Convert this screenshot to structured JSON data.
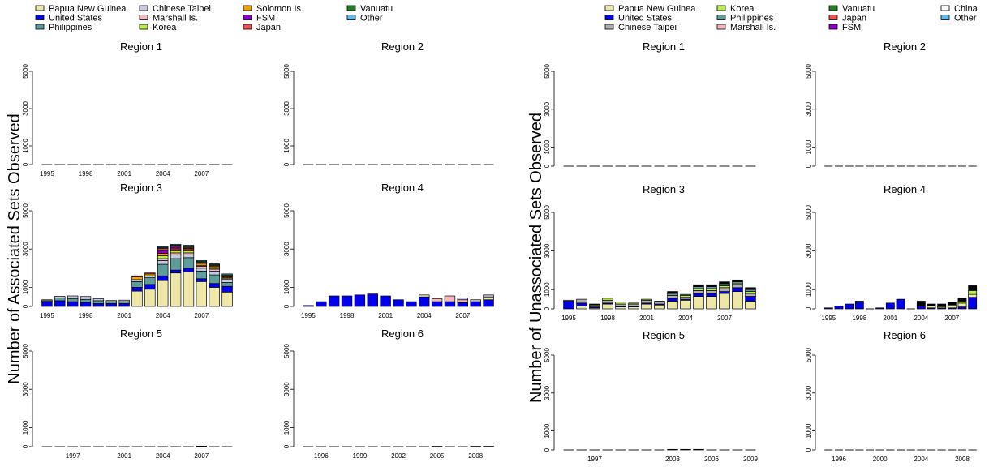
{
  "figure": {
    "left_ylabel": "Number of Associated Sets Observed",
    "right_ylabel": "Number of Unassociated Sets Observed"
  },
  "legends": {
    "left": [
      {
        "name": "Papua New Guinea",
        "color": "#eee8a8"
      },
      {
        "name": "United States",
        "color": "#0000ee"
      },
      {
        "name": "Philippines",
        "color": "#5e9e9a"
      },
      {
        "name": "Chinese Taipei",
        "color": "#c8c8e0"
      },
      {
        "name": "Marshall Is.",
        "color": "#f4b8c0"
      },
      {
        "name": "Korea",
        "color": "#b8f048"
      },
      {
        "name": "Solomon Is.",
        "color": "#f0a000"
      },
      {
        "name": "FSM",
        "color": "#8a00c8"
      },
      {
        "name": "Japan",
        "color": "#f05050"
      },
      {
        "name": "Vanuatu",
        "color": "#208020"
      },
      {
        "name": "Other",
        "color": "#60b8f0"
      }
    ],
    "right": [
      {
        "name": "Papua New Guinea",
        "color": "#eee8a8"
      },
      {
        "name": "United States",
        "color": "#0000ee"
      },
      {
        "name": "Chinese Taipei",
        "color": "#b0b0b0"
      },
      {
        "name": "Korea",
        "color": "#b8f048"
      },
      {
        "name": "Philippines",
        "color": "#5e9e9a"
      },
      {
        "name": "Marshall Is.",
        "color": "#f4b8c0"
      },
      {
        "name": "Vanuatu",
        "color": "#208020"
      },
      {
        "name": "Japan",
        "color": "#f05050"
      },
      {
        "name": "FSM",
        "color": "#8a00c8"
      },
      {
        "name": "China",
        "color": "#ffffff"
      },
      {
        "name": "Other",
        "color": "#60b8f0"
      }
    ]
  },
  "chart_data": [
    {
      "type": "bar",
      "stacked": true,
      "group": "Associated",
      "title": "Region 1",
      "categories": [
        "1995",
        "1996",
        "1997",
        "1998",
        "1999",
        "2000",
        "2001",
        "2002",
        "2003",
        "2004",
        "2005",
        "2006",
        "2007",
        "2008",
        "2009"
      ],
      "ylim": [
        0,
        5000
      ],
      "yticks": [
        0,
        1000,
        3000,
        5000
      ],
      "xtick_labels": [
        "1995",
        "1998",
        "2001",
        "2004",
        "2007"
      ],
      "series": []
    },
    {
      "type": "bar",
      "stacked": true,
      "group": "Associated",
      "title": "Region 2",
      "categories": [
        "1995",
        "1996",
        "1997",
        "1998",
        "1999",
        "2000",
        "2001",
        "2002",
        "2003",
        "2004",
        "2005",
        "2006",
        "2007",
        "2008",
        "2009"
      ],
      "ylim": [
        0,
        5000
      ],
      "yticks": [
        0,
        1000,
        3000,
        5000
      ],
      "xtick_labels": [],
      "series": []
    },
    {
      "type": "bar",
      "stacked": true,
      "group": "Associated",
      "title": "Region 3",
      "categories": [
        "1995",
        "1996",
        "1997",
        "1998",
        "1999",
        "2000",
        "2001",
        "2002",
        "2003",
        "2004",
        "2005",
        "2006",
        "2007",
        "2008",
        "2009"
      ],
      "ylim": [
        0,
        5000
      ],
      "yticks": [
        0,
        1000,
        3000,
        5000
      ],
      "xtick_labels": [
        "1995",
        "1998",
        "2001",
        "2004",
        "2007"
      ],
      "series": [
        {
          "name": "Papua New Guinea",
          "color": "#eee8a8",
          "values": [
            0,
            0,
            0,
            0,
            0,
            0,
            0,
            800,
            900,
            1350,
            1750,
            1800,
            1300,
            1000,
            750
          ]
        },
        {
          "name": "United States",
          "color": "#0000ee",
          "values": [
            250,
            300,
            250,
            220,
            150,
            150,
            150,
            200,
            250,
            250,
            150,
            200,
            150,
            200,
            300
          ]
        },
        {
          "name": "Philippines",
          "color": "#5e9e9a",
          "values": [
            50,
            150,
            150,
            150,
            150,
            100,
            100,
            300,
            350,
            600,
            600,
            550,
            400,
            450,
            200
          ]
        },
        {
          "name": "Chinese Taipei",
          "color": "#c8c8e0",
          "values": [
            50,
            80,
            150,
            150,
            100,
            60,
            80,
            100,
            100,
            200,
            200,
            150,
            150,
            200,
            150
          ]
        },
        {
          "name": "Marshall Is.",
          "color": "#f4b8c0",
          "values": [
            0,
            0,
            0,
            0,
            0,
            0,
            0,
            0,
            0,
            100,
            100,
            100,
            100,
            100,
            50
          ]
        },
        {
          "name": "Korea",
          "color": "#b8f048",
          "values": [
            0,
            0,
            0,
            0,
            0,
            0,
            0,
            0,
            0,
            150,
            100,
            100,
            50,
            50,
            50
          ]
        },
        {
          "name": "Solomon Is.",
          "color": "#f0a000",
          "values": [
            0,
            0,
            0,
            0,
            0,
            0,
            0,
            150,
            100,
            120,
            100,
            100,
            100,
            80,
            50
          ]
        },
        {
          "name": "FSM",
          "color": "#8a00c8",
          "values": [
            0,
            0,
            0,
            0,
            0,
            0,
            0,
            0,
            0,
            150,
            100,
            50,
            0,
            0,
            0
          ]
        },
        {
          "name": "Japan",
          "color": "#f05050",
          "values": [
            0,
            0,
            0,
            0,
            0,
            0,
            0,
            50,
            50,
            100,
            50,
            50,
            50,
            50,
            50
          ]
        },
        {
          "name": "Vanuatu",
          "color": "#208020",
          "values": [
            0,
            0,
            0,
            0,
            0,
            0,
            0,
            0,
            0,
            50,
            50,
            50,
            50,
            50,
            50
          ]
        },
        {
          "name": "Other",
          "color": "#60b8f0",
          "values": [
            0,
            0,
            0,
            0,
            0,
            0,
            0,
            0,
            0,
            50,
            50,
            50,
            50,
            50,
            50
          ]
        },
        {
          "name": "China",
          "color": "#ffffff",
          "values": [
            0,
            0,
            0,
            0,
            0,
            0,
            0,
            0,
            0,
            0,
            0,
            0,
            0,
            0,
            0
          ]
        }
      ]
    },
    {
      "type": "bar",
      "stacked": true,
      "group": "Associated",
      "title": "Region 4",
      "categories": [
        "1995",
        "1996",
        "1997",
        "1998",
        "1999",
        "2000",
        "2001",
        "2002",
        "2003",
        "2004",
        "2005",
        "2006",
        "2007",
        "2008",
        "2009"
      ],
      "ylim": [
        0,
        5000
      ],
      "yticks": [
        0,
        1000,
        3000,
        5000
      ],
      "xtick_labels": [
        "1995",
        "1998",
        "2001",
        "2004",
        "2007"
      ],
      "series": [
        {
          "name": "United States",
          "color": "#0000ee",
          "values": [
            50,
            250,
            550,
            550,
            600,
            650,
            550,
            350,
            250,
            500,
            250,
            250,
            200,
            250,
            350
          ]
        },
        {
          "name": "Papua New Guinea",
          "color": "#eee8a8",
          "values": [
            0,
            0,
            0,
            0,
            0,
            0,
            0,
            0,
            0,
            100,
            0,
            0,
            0,
            0,
            100
          ]
        },
        {
          "name": "Marshall Is.",
          "color": "#f4b8c0",
          "values": [
            0,
            0,
            0,
            0,
            0,
            0,
            0,
            0,
            0,
            0,
            150,
            300,
            150,
            0,
            50
          ]
        },
        {
          "name": "Chinese Taipei",
          "color": "#c8c8e0",
          "values": [
            0,
            0,
            0,
            0,
            0,
            0,
            0,
            0,
            0,
            0,
            0,
            0,
            100,
            100,
            100
          ]
        }
      ]
    },
    {
      "type": "bar",
      "stacked": true,
      "group": "Associated",
      "title": "Region 5",
      "categories": [
        "1995",
        "1996",
        "1997",
        "1998",
        "1999",
        "2000",
        "2001",
        "2002",
        "2003",
        "2004",
        "2005",
        "2006",
        "2007",
        "2008",
        "2009"
      ],
      "ylim": [
        0,
        5000
      ],
      "yticks": [
        0,
        1000,
        3000,
        5000
      ],
      "xtick_labels": [
        "1997",
        "2001",
        "2004",
        "2007"
      ],
      "series": [
        {
          "name": "Other",
          "color": "#60b8f0",
          "values": [
            0,
            0,
            0,
            0,
            0,
            0,
            0,
            0,
            0,
            0,
            0,
            0,
            30,
            0,
            0
          ]
        }
      ]
    },
    {
      "type": "bar",
      "stacked": true,
      "group": "Associated",
      "title": "Region 6",
      "categories": [
        "1995",
        "1996",
        "1997",
        "1998",
        "1999",
        "2000",
        "2001",
        "2002",
        "2003",
        "2004",
        "2005",
        "2006",
        "2007",
        "2008",
        "2009"
      ],
      "ylim": [
        0,
        5000
      ],
      "yticks": [
        0,
        1000,
        3000,
        5000
      ],
      "xtick_labels": [
        "1996",
        "1999",
        "2002",
        "2005",
        "2008"
      ],
      "series": [
        {
          "name": "Other",
          "color": "#60b8f0",
          "values": [
            0,
            0,
            0,
            0,
            0,
            0,
            0,
            0,
            0,
            0,
            20,
            0,
            0,
            20,
            20
          ]
        }
      ]
    },
    {
      "type": "bar",
      "stacked": true,
      "group": "Unassociated",
      "title": "Region 1",
      "categories": [
        "1995",
        "1996",
        "1997",
        "1998",
        "1999",
        "2000",
        "2001",
        "2002",
        "2003",
        "2004",
        "2005",
        "2006",
        "2007",
        "2008",
        "2009"
      ],
      "ylim": [
        0,
        5000
      ],
      "yticks": [
        0,
        1000,
        3000,
        5000
      ],
      "xtick_labels": [],
      "series": []
    },
    {
      "type": "bar",
      "stacked": true,
      "group": "Unassociated",
      "title": "Region 2",
      "categories": [
        "1995",
        "1996",
        "1997",
        "1998",
        "1999",
        "2000",
        "2001",
        "2002",
        "2003",
        "2004",
        "2005",
        "2006",
        "2007",
        "2008",
        "2009"
      ],
      "ylim": [
        0,
        5000
      ],
      "yticks": [
        0,
        1000,
        3000,
        5000
      ],
      "xtick_labels": [],
      "series": []
    },
    {
      "type": "bar",
      "stacked": true,
      "group": "Unassociated",
      "title": "Region 3",
      "categories": [
        "1995",
        "1996",
        "1997",
        "1998",
        "1999",
        "2000",
        "2001",
        "2002",
        "2003",
        "2004",
        "2005",
        "2006",
        "2007",
        "2008",
        "2009"
      ],
      "ylim": [
        0,
        5000
      ],
      "yticks": [
        0,
        1000,
        3000,
        5000
      ],
      "xtick_labels": [
        "1995",
        "1998",
        "2001",
        "2004",
        "2007"
      ],
      "series": [
        {
          "name": "Papua New Guinea",
          "color": "#eee8a8",
          "values": [
            0,
            150,
            50,
            250,
            100,
            100,
            250,
            200,
            400,
            450,
            650,
            650,
            800,
            900,
            400
          ]
        },
        {
          "name": "United States",
          "color": "#0000ee",
          "values": [
            400,
            150,
            50,
            50,
            50,
            50,
            50,
            50,
            150,
            50,
            150,
            150,
            100,
            200,
            250
          ]
        },
        {
          "name": "Chinese Taipei",
          "color": "#b0b0b0",
          "values": [
            50,
            200,
            50,
            150,
            100,
            100,
            150,
            100,
            150,
            100,
            150,
            150,
            200,
            150,
            150
          ]
        },
        {
          "name": "Korea",
          "color": "#b8f048",
          "values": [
            0,
            0,
            50,
            100,
            100,
            50,
            50,
            0,
            0,
            100,
            100,
            100,
            100,
            50,
            100
          ]
        },
        {
          "name": "Philippines",
          "color": "#5e9e9a",
          "values": [
            0,
            0,
            0,
            0,
            0,
            0,
            0,
            0,
            100,
            50,
            100,
            100,
            100,
            100,
            100
          ]
        },
        {
          "name": "Other",
          "color": "#000000",
          "values": [
            0,
            0,
            50,
            0,
            0,
            0,
            0,
            50,
            100,
            0,
            100,
            100,
            100,
            100,
            100
          ]
        }
      ]
    },
    {
      "type": "bar",
      "stacked": true,
      "group": "Unassociated",
      "title": "Region 4",
      "categories": [
        "1995",
        "1996",
        "1997",
        "1998",
        "1999",
        "2000",
        "2001",
        "2002",
        "2003",
        "2004",
        "2005",
        "2006",
        "2007",
        "2008",
        "2009"
      ],
      "ylim": [
        0,
        5000
      ],
      "yticks": [
        0,
        1000,
        3000,
        5000
      ],
      "xtick_labels": [
        "1995",
        "1998",
        "2001",
        "2004",
        "2007"
      ],
      "series": [
        {
          "name": "United States",
          "color": "#0000ee",
          "values": [
            50,
            150,
            250,
            350,
            0,
            50,
            300,
            500,
            0,
            150,
            50,
            50,
            50,
            100,
            600
          ]
        },
        {
          "name": "Papua New Guinea",
          "color": "#eee8a8",
          "values": [
            0,
            0,
            0,
            0,
            0,
            0,
            0,
            0,
            0,
            0,
            100,
            50,
            100,
            200,
            150
          ]
        },
        {
          "name": "Korea",
          "color": "#b8f048",
          "values": [
            0,
            0,
            0,
            0,
            0,
            0,
            0,
            0,
            0,
            0,
            0,
            50,
            50,
            100,
            200
          ]
        },
        {
          "name": "Other",
          "color": "#000000",
          "values": [
            0,
            0,
            0,
            50,
            0,
            0,
            0,
            0,
            0,
            250,
            100,
            100,
            150,
            150,
            250
          ]
        }
      ]
    },
    {
      "type": "bar",
      "stacked": true,
      "group": "Unassociated",
      "title": "Region 5",
      "categories": [
        "1995",
        "1996",
        "1997",
        "1998",
        "1999",
        "2000",
        "2001",
        "2002",
        "2003",
        "2004",
        "2005",
        "2006",
        "2007",
        "2008",
        "2009"
      ],
      "ylim": [
        0,
        5000
      ],
      "yticks": [
        0,
        1000,
        3000,
        5000
      ],
      "xtick_labels": [
        "1997",
        "2003",
        "2006",
        "2009"
      ],
      "series": [
        {
          "name": "Other",
          "color": "#000000",
          "values": [
            0,
            0,
            0,
            0,
            0,
            0,
            0,
            0,
            30,
            30,
            30,
            0,
            0,
            0,
            0
          ]
        }
      ]
    },
    {
      "type": "bar",
      "stacked": true,
      "group": "Unassociated",
      "title": "Region 6",
      "categories": [
        "1995",
        "1996",
        "1997",
        "1998",
        "1999",
        "2000",
        "2001",
        "2002",
        "2003",
        "2004",
        "2005",
        "2006",
        "2007",
        "2008",
        "2009"
      ],
      "ylim": [
        0,
        5000
      ],
      "yticks": [
        0,
        1000,
        3000,
        5000
      ],
      "xtick_labels": [
        "1996",
        "2000",
        "2004",
        "2008"
      ],
      "series": []
    }
  ]
}
